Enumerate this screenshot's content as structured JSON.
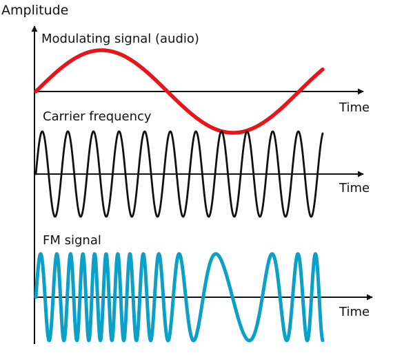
{
  "labels": {
    "y_axis": "Amplitude",
    "time_1": "Time",
    "time_2": "Time",
    "time_3": "Time"
  },
  "panels": [
    {
      "title": "Modulating signal (audio)",
      "color": "#e8141b",
      "kind": "modulating"
    },
    {
      "title": "Carrier frequency",
      "color": "#111111",
      "kind": "carrier"
    },
    {
      "title": "FM signal",
      "color": "#0aa0c8",
      "kind": "fm"
    }
  ]
}
